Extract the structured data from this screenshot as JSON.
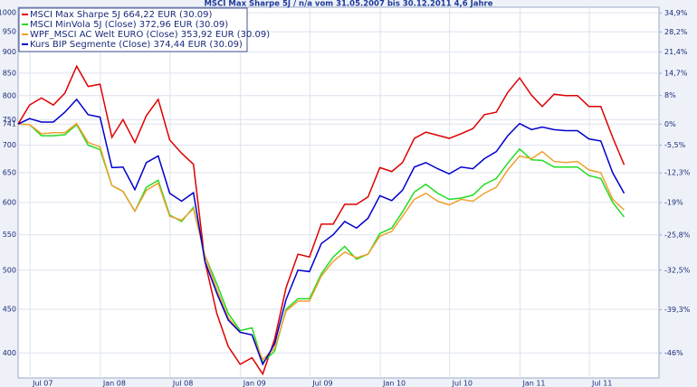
{
  "chart_data": {
    "type": "line",
    "title": "MSCI Max Sharpe 5J / n/a vom 31.05.2007 bis 30.12.2011 4,6 Jahre",
    "x": [
      "2007-05-31",
      "2007-06-30",
      "2007-07-31",
      "2007-08-31",
      "2007-09-30",
      "2007-10-31",
      "2007-11-30",
      "2007-12-31",
      "2008-01-31",
      "2008-02-29",
      "2008-03-31",
      "2008-04-30",
      "2008-05-31",
      "2008-06-30",
      "2008-07-31",
      "2008-08-31",
      "2008-09-30",
      "2008-10-31",
      "2008-11-30",
      "2008-12-31",
      "2009-01-31",
      "2009-02-28",
      "2009-03-31",
      "2009-04-30",
      "2009-05-31",
      "2009-06-30",
      "2009-07-31",
      "2009-08-31",
      "2009-09-30",
      "2009-10-31",
      "2009-11-30",
      "2009-12-31",
      "2010-01-31",
      "2010-02-28",
      "2010-03-31",
      "2010-04-30",
      "2010-05-31",
      "2010-06-30",
      "2010-07-31",
      "2010-08-31",
      "2010-09-30",
      "2010-10-31",
      "2010-11-30",
      "2010-12-31",
      "2011-01-31",
      "2011-02-28",
      "2011-03-31",
      "2011-04-30",
      "2011-05-31",
      "2011-06-30",
      "2011-07-31",
      "2011-08-31",
      "2011-09-30"
    ],
    "series": [
      {
        "name": "MSCI Max Sharpe 5J 664,22 EUR (30.09)",
        "color": "#e00000",
        "values": [
          741,
          780,
          795,
          780,
          805,
          866,
          820,
          825,
          715,
          750,
          705,
          758,
          792,
          710,
          685,
          665,
          512,
          445,
          407,
          388,
          395,
          378,
          415,
          477,
          522,
          518,
          566,
          566,
          597,
          597,
          609,
          659,
          652,
          668,
          713,
          725,
          719,
          713,
          722,
          732,
          760,
          765,
          807,
          839,
          801,
          777,
          803,
          800,
          800,
          777,
          777,
          715,
          664
        ]
      },
      {
        "name": "MSCI MinVola 5J (Close) 372,96 EUR (30.09)",
        "color": "#22dd22",
        "values": [
          741,
          740,
          718,
          718,
          720,
          740,
          700,
          692,
          628,
          618,
          586,
          625,
          637,
          580,
          570,
          592,
          520,
          482,
          445,
          425,
          428,
          390,
          402,
          450,
          463,
          463,
          495,
          518,
          533,
          515,
          522,
          552,
          560,
          585,
          617,
          630,
          615,
          605,
          607,
          612,
          630,
          640,
          667,
          693,
          673,
          672,
          660,
          660,
          660,
          645,
          640,
          600,
          577
        ]
      },
      {
        "name": "WPF_MSCI AC Welt EURO (Close) 353,92 EUR (30.09)",
        "color": "#f0a030",
        "values": [
          741,
          740,
          722,
          724,
          724,
          742,
          705,
          697,
          628,
          618,
          586,
          620,
          632,
          578,
          572,
          590,
          520,
          475,
          440,
          423,
          420,
          393,
          405,
          448,
          460,
          460,
          492,
          512,
          525,
          517,
          522,
          548,
          555,
          578,
          605,
          615,
          602,
          596,
          605,
          602,
          615,
          625,
          655,
          680,
          675,
          688,
          670,
          668,
          670,
          655,
          650,
          605,
          588
        ]
      },
      {
        "name": "Kurs BIP Segmente (Close) 374,44 EUR (30.09)",
        "color": "#0000cc",
        "values": [
          741,
          752,
          745,
          745,
          765,
          792,
          760,
          755,
          659,
          660,
          621,
          668,
          680,
          615,
          602,
          616,
          512,
          470,
          437,
          423,
          420,
          388,
          410,
          462,
          500,
          498,
          537,
          550,
          570,
          560,
          575,
          611,
          603,
          620,
          660,
          668,
          657,
          648,
          660,
          657,
          675,
          688,
          718,
          742,
          730,
          735,
          730,
          728,
          728,
          712,
          708,
          650,
          615
        ]
      }
    ],
    "xlim": [
      "2007-05-31",
      "2011-12-30"
    ],
    "xticks": [
      {
        "value": "2007-07-01",
        "label": "Jul 07"
      },
      {
        "value": "2008-01-01",
        "label": "Jan 08"
      },
      {
        "value": "2008-07-01",
        "label": "Jul 08"
      },
      {
        "value": "2009-01-01",
        "label": "Jan 09"
      },
      {
        "value": "2009-07-01",
        "label": "Jul 09"
      },
      {
        "value": "2010-01-01",
        "label": "Jan 10"
      },
      {
        "value": "2010-07-01",
        "label": "Jul 10"
      },
      {
        "value": "2011-01-01",
        "label": "Jan 11"
      },
      {
        "value": "2011-07-01",
        "label": "Jul 11"
      }
    ],
    "ylim": [
      374,
      1015
    ],
    "yticks": [
      1000,
      950,
      900,
      850,
      800,
      750,
      741,
      700,
      650,
      600,
      550,
      500,
      450,
      400
    ],
    "y2lim": [
      -49.5,
      37
    ],
    "y2ticks": [
      {
        "value": 34.9,
        "label": "34,9%"
      },
      {
        "value": 28.2,
        "label": "28,2%"
      },
      {
        "value": 21.4,
        "label": "21,4%"
      },
      {
        "value": 14.7,
        "label": "14,7%"
      },
      {
        "value": 8,
        "label": "8%"
      },
      {
        "value": 0,
        "label": "0%"
      },
      {
        "value": -5.5,
        "label": "-5,5%"
      },
      {
        "value": -12.3,
        "label": "-12,3%"
      },
      {
        "value": -19,
        "label": "-19%"
      },
      {
        "value": -25.8,
        "label": "-25,8%"
      },
      {
        "value": -32.5,
        "label": "-32,5%"
      },
      {
        "value": -39.3,
        "label": "-39,3%"
      },
      {
        "value": -46,
        "label": "-46%"
      }
    ],
    "log_scale": true,
    "grid": true,
    "legend": "upper left"
  }
}
